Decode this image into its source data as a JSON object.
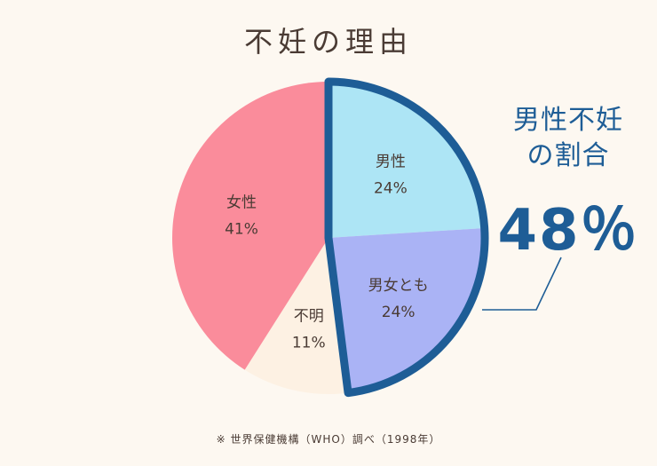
{
  "title": "不妊の理由",
  "callout": {
    "line1": "男性不妊",
    "line2": "の割合",
    "value": "48％"
  },
  "footnote": "※ 世界保健機構（WHO）調べ（1998年）",
  "colors": {
    "background": "#fdf8f1",
    "male": "#ade5f5",
    "both": "#aab3f5",
    "unknown": "#fdf1e3",
    "female": "#fa8c9b",
    "highlight": "#1e5d96",
    "text": "#4a3b34"
  },
  "chart_data": {
    "type": "pie",
    "title": "不妊の理由",
    "unit": "%",
    "slices": [
      {
        "label": "男性",
        "value": 24,
        "display": "24%",
        "color": "#ade5f5"
      },
      {
        "label": "男女とも",
        "value": 24,
        "display": "24%",
        "color": "#aab3f5"
      },
      {
        "label": "不明",
        "value": 11,
        "display": "11%",
        "color": "#fdf1e3"
      },
      {
        "label": "女性",
        "value": 41,
        "display": "41%",
        "color": "#fa8c9b"
      }
    ],
    "highlight": {
      "slices": [
        "男性",
        "男女とも"
      ],
      "value": 48
    }
  }
}
